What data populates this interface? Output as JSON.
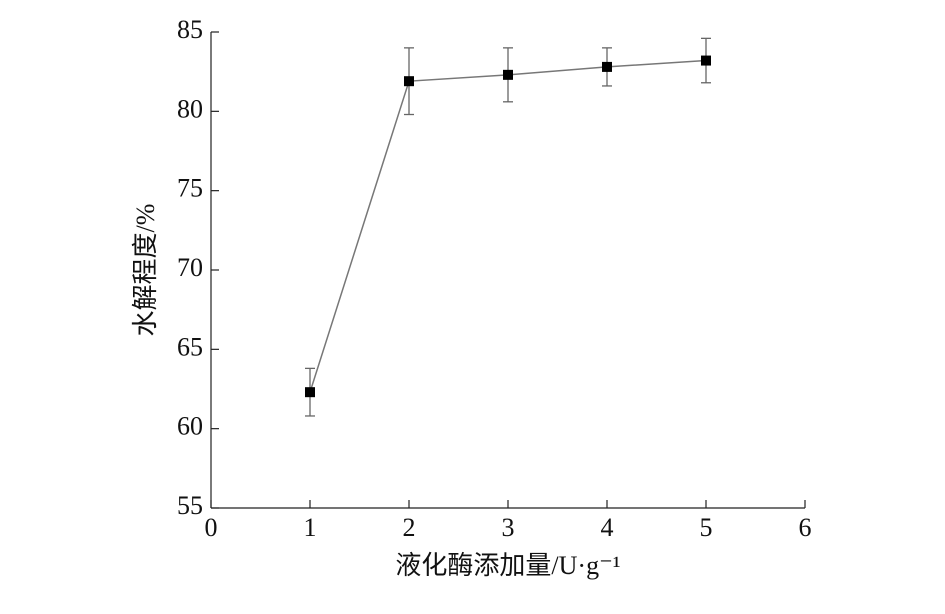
{
  "chart_data": {
    "type": "line",
    "x": [
      1,
      2,
      3,
      4,
      5
    ],
    "series": [
      {
        "color": "#777777",
        "marker_color": "#000000",
        "values": [
          62.3,
          81.9,
          82.3,
          82.8,
          83.2
        ],
        "errors": [
          1.5,
          2.1,
          1.7,
          1.2,
          1.4
        ]
      }
    ],
    "xlim": [
      0,
      6
    ],
    "xticks": [
      0,
      1,
      2,
      3,
      4,
      5,
      6
    ],
    "ylim": [
      55,
      85
    ],
    "yticks": [
      55,
      60,
      65,
      70,
      75,
      80,
      85
    ],
    "xlabel": "液化酶添加量/U·g⁻¹",
    "ylabel": "水解程度/%",
    "grid": false
  }
}
